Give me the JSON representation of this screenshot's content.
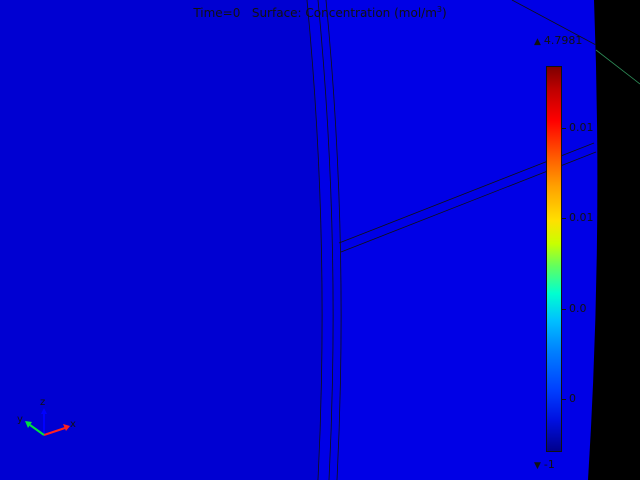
{
  "plot": {
    "time_label": "Time=0",
    "surface_label": "Surface: Concentration (mol/m",
    "unit_superscript": "3",
    "unit_close": ")"
  },
  "colorbar": {
    "max_label": "4.7981",
    "min_label": "-1",
    "tick_labels": [
      "0.01",
      "0.01",
      "0.0",
      "0"
    ],
    "colormap": "rainbow"
  },
  "axes_triad": {
    "z_label": "z",
    "y_label": "y",
    "x_label": "x"
  },
  "colors": {
    "surface": "#0000e6",
    "surface_dark": "#0000d2",
    "outside": "#000000",
    "text": "#111111"
  }
}
